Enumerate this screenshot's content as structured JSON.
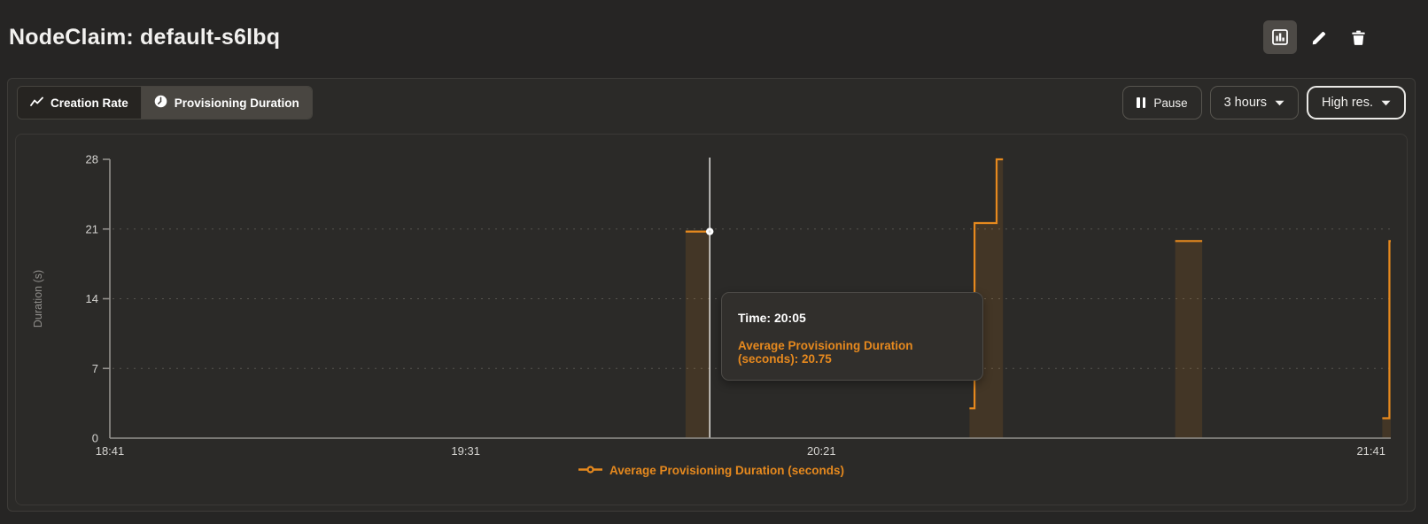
{
  "header": {
    "title": "NodeClaim: default-s6lbq"
  },
  "toolbar": {
    "tabs": [
      {
        "label": "Creation Rate",
        "icon": "trend-line-icon",
        "selected": false
      },
      {
        "label": "Provisioning Duration",
        "icon": "clock-icon",
        "selected": true
      }
    ],
    "pause_label": "Pause",
    "time_range_value": "3 hours",
    "resolution_value": "High res."
  },
  "header_icons": [
    "bar-chart-icon",
    "pencil-icon",
    "trash-icon"
  ],
  "tooltip": {
    "time_label": "Time:",
    "time_value": "20:05",
    "series_label": "Average Provisioning Duration (seconds):",
    "series_value": "20.75"
  },
  "legend": {
    "label": "Average Provisioning Duration (seconds)"
  },
  "colors": {
    "series": "#e6891e",
    "selected_tab_bg": "#494641",
    "focused_border": "#e9e8e5"
  },
  "chart_data": {
    "type": "line",
    "variant": "step",
    "title": "",
    "xlabel": "",
    "ylabel": "Duration (s)",
    "ylim": [
      0,
      28
    ],
    "y_ticks": [
      0,
      7,
      14,
      21,
      28
    ],
    "grid_ticks": [
      7,
      14,
      21
    ],
    "x_axis": {
      "range_minutes": 180,
      "start_time": "18:41",
      "ticks": [
        {
          "m": 0,
          "label": "18:41"
        },
        {
          "m": 50,
          "label": "19:31"
        },
        {
          "m": 100,
          "label": "20:21"
        },
        {
          "m": 180,
          "label": "21:41"
        }
      ]
    },
    "series": [
      {
        "name": "Average Provisioning Duration (seconds)",
        "color": "#e6891e",
        "fill_opacity": 0.13,
        "segments": [
          {
            "points": [
              [
                80.9,
                20.75
              ],
              [
                84.4,
                20.75
              ]
            ]
          },
          {
            "points": [
              [
                120.8,
                3
              ],
              [
                121.5,
                3
              ],
              [
                121.5,
                21.6
              ],
              [
                124.6,
                21.6
              ],
              [
                124.6,
                28
              ],
              [
                125.5,
                28
              ]
            ]
          },
          {
            "points": [
              [
                149.7,
                19.8
              ],
              [
                153.5,
                19.8
              ]
            ]
          },
          {
            "points": [
              [
                178.8,
                2
              ],
              [
                179.8,
                2
              ],
              [
                179.8,
                19.8
              ],
              [
                180,
                19.8
              ]
            ]
          }
        ]
      }
    ],
    "hover": {
      "minutes": 84.3,
      "value": 20.75,
      "time": "20:05"
    }
  }
}
